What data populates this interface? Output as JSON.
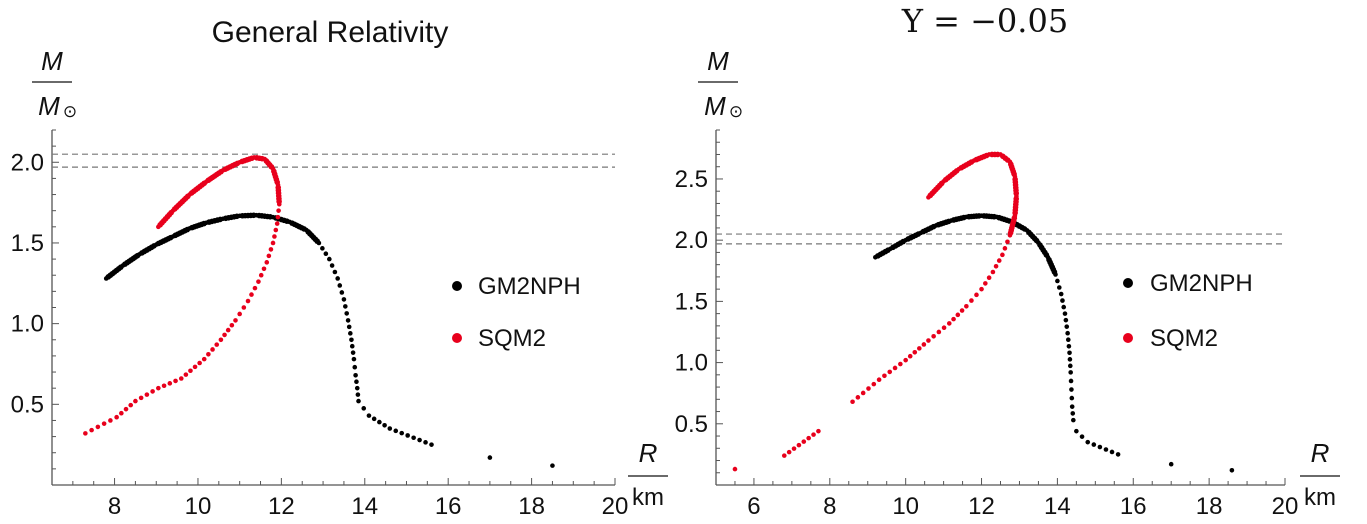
{
  "chart_data": [
    {
      "type": "scatter",
      "title": "General Relativity",
      "xlabel": "R",
      "xunit": "km",
      "ylabel": "M",
      "ylabel_denominator": "M",
      "ylabel_denominator_sub": "⊙",
      "xlim": [
        6.5,
        20
      ],
      "ylim": [
        0,
        2.2
      ],
      "xticks": [
        8,
        10,
        12,
        14,
        16,
        18,
        20
      ],
      "xtick_labels": [
        "8",
        "10",
        "12",
        "14",
        "16",
        "18",
        "20"
      ],
      "yticks": [
        0.5,
        1.0,
        1.5,
        2.0
      ],
      "ytick_labels": [
        "0.5",
        "1.0",
        "1.5",
        "2.0"
      ],
      "hlines": [
        1.97,
        2.05
      ],
      "legend_position": "right",
      "grid": false,
      "series": [
        {
          "name": "GM2NPH",
          "color": "#000000",
          "x": [
            7.8,
            8.2,
            8.6,
            9.0,
            9.4,
            9.8,
            10.2,
            10.6,
            11.0,
            11.4,
            11.8,
            12.2,
            12.6,
            12.9,
            13.15,
            13.35,
            13.5,
            13.6,
            13.68,
            13.74,
            13.78,
            13.82,
            13.85,
            14.1,
            14.6,
            15.6,
            17.0,
            18.5
          ],
          "y": [
            1.28,
            1.36,
            1.43,
            1.49,
            1.54,
            1.59,
            1.625,
            1.65,
            1.668,
            1.672,
            1.66,
            1.63,
            1.58,
            1.5,
            1.4,
            1.28,
            1.15,
            1.02,
            0.9,
            0.78,
            0.68,
            0.6,
            0.52,
            0.43,
            0.35,
            0.25,
            0.17,
            0.12
          ],
          "highres_segments": [
            {
              "from_index": 0,
              "to_index": 12,
              "label": "dense"
            }
          ]
        },
        {
          "name": "SQM2",
          "color": "#e8001c",
          "x": [
            9.05,
            9.4,
            9.8,
            10.2,
            10.6,
            11.0,
            11.35,
            11.6,
            11.8,
            11.92,
            11.95,
            11.9,
            11.8,
            11.65,
            11.45,
            11.2,
            10.9,
            10.55,
            10.15,
            9.6,
            9.05,
            8.5,
            8.05,
            7.3
          ],
          "y": [
            1.6,
            1.7,
            1.8,
            1.88,
            1.95,
            2.0,
            2.03,
            2.02,
            1.96,
            1.86,
            1.74,
            1.62,
            1.5,
            1.38,
            1.26,
            1.14,
            1.02,
            0.9,
            0.78,
            0.66,
            0.6,
            0.52,
            0.42,
            0.32
          ]
        }
      ]
    },
    {
      "type": "scatter",
      "title": "Υ = −0.05",
      "xlabel": "R",
      "xunit": "km",
      "ylabel": "M",
      "ylabel_denominator": "M",
      "ylabel_denominator_sub": "⊙",
      "xlim": [
        5,
        20
      ],
      "ylim": [
        0,
        2.9
      ],
      "xticks": [
        6,
        8,
        10,
        12,
        14,
        16,
        18,
        20
      ],
      "xtick_labels": [
        "6",
        "8",
        "10",
        "12",
        "14",
        "16",
        "18",
        "20"
      ],
      "yticks": [
        0.5,
        1.0,
        1.5,
        2.0,
        2.5
      ],
      "ytick_labels": [
        "0.5",
        "1.0",
        "1.5",
        "2.0",
        "2.5"
      ],
      "hlines": [
        1.97,
        2.05
      ],
      "legend_position": "right",
      "grid": false,
      "series": [
        {
          "name": "GM2NPH",
          "color": "#000000",
          "x": [
            9.2,
            9.6,
            10.0,
            10.4,
            10.8,
            11.2,
            11.6,
            12.0,
            12.4,
            12.8,
            13.2,
            13.5,
            13.75,
            13.95,
            14.1,
            14.2,
            14.27,
            14.32,
            14.35,
            14.37,
            14.39,
            14.42,
            14.5,
            14.8,
            15.6,
            17.0,
            18.6
          ],
          "y": [
            1.86,
            1.93,
            2.0,
            2.06,
            2.12,
            2.16,
            2.19,
            2.2,
            2.19,
            2.15,
            2.08,
            1.98,
            1.86,
            1.72,
            1.56,
            1.4,
            1.24,
            1.08,
            0.92,
            0.78,
            0.64,
            0.53,
            0.44,
            0.35,
            0.25,
            0.17,
            0.12
          ]
        },
        {
          "name": "SQM2",
          "color": "#e8001c",
          "x": [
            10.6,
            11.0,
            11.4,
            11.8,
            12.2,
            12.5,
            12.75,
            12.88,
            12.92,
            12.88,
            12.75,
            12.55,
            12.3,
            12.0,
            11.6,
            11.15,
            10.6,
            10.0,
            9.3,
            8.6,
            7.7,
            6.8,
            5.5
          ],
          "y": [
            2.35,
            2.48,
            2.58,
            2.65,
            2.7,
            2.7,
            2.64,
            2.52,
            2.36,
            2.2,
            2.04,
            1.88,
            1.74,
            1.6,
            1.46,
            1.32,
            1.18,
            1.02,
            0.86,
            0.68,
            0.44,
            0.24,
            0.13
          ]
        }
      ]
    }
  ]
}
